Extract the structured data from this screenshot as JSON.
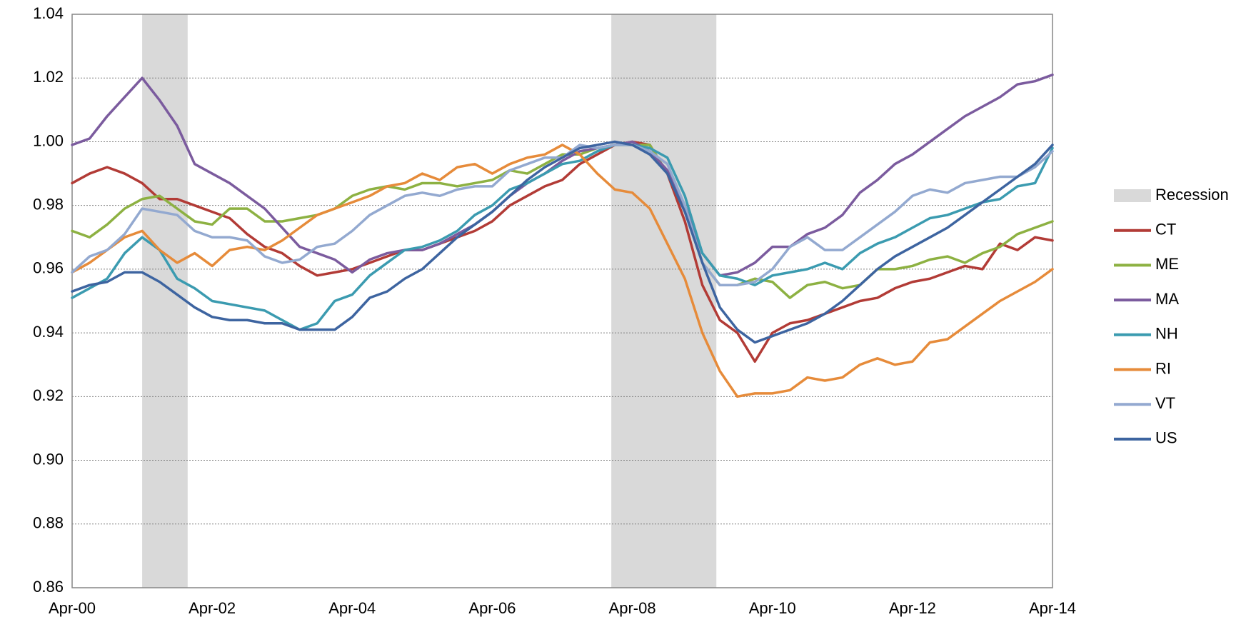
{
  "chart_data": {
    "type": "line",
    "categories": [
      "Apr-00",
      null,
      null,
      null,
      null,
      null,
      null,
      null,
      "Apr-02",
      null,
      null,
      null,
      null,
      null,
      null,
      null,
      "Apr-04",
      null,
      null,
      null,
      null,
      null,
      null,
      null,
      "Apr-06",
      null,
      null,
      null,
      null,
      null,
      null,
      null,
      "Apr-08",
      null,
      null,
      null,
      null,
      null,
      null,
      null,
      "Apr-10",
      null,
      null,
      null,
      null,
      null,
      null,
      null,
      "Apr-12",
      null,
      null,
      null,
      null,
      null,
      null,
      null,
      "Apr-14"
    ],
    "ylim": [
      0.86,
      1.04
    ],
    "yticks": [
      0.86,
      0.88,
      {
        "value": 0.9,
        "label": "0.90"
      },
      0.92,
      0.94,
      0.96,
      0.98,
      {
        "value": 1,
        "label": "1.00"
      },
      1.02,
      1.04
    ],
    "grid": true,
    "legend": "right",
    "recession": {
      "name": "Recession",
      "color": "#d9d9d9",
      "ranges": [
        [
          4,
          6.6
        ],
        [
          30.8,
          36.8
        ]
      ]
    },
    "series": [
      {
        "name": "CT",
        "color": "#b23b36",
        "values": [
          0.987,
          0.99,
          0.992,
          0.99,
          0.987,
          0.982,
          0.982,
          0.98,
          0.978,
          0.976,
          0.971,
          0.967,
          0.965,
          0.961,
          0.958,
          0.959,
          0.96,
          0.962,
          0.964,
          0.966,
          0.966,
          0.968,
          0.97,
          0.972,
          0.975,
          0.98,
          0.983,
          0.986,
          0.988,
          0.993,
          0.996,
          0.999,
          1.0,
          0.999,
          0.99,
          0.975,
          0.955,
          0.944,
          0.94,
          0.931,
          0.94,
          0.943,
          0.944,
          0.946,
          0.948,
          0.95,
          0.951,
          0.954,
          0.956,
          0.957,
          0.959,
          0.961,
          0.96,
          0.968,
          0.966,
          0.97,
          0.969
        ]
      },
      {
        "name": "ME",
        "color": "#8db142",
        "values": [
          0.972,
          0.97,
          0.974,
          0.979,
          0.982,
          0.983,
          0.979,
          0.975,
          0.974,
          0.979,
          0.979,
          0.975,
          0.975,
          0.976,
          0.977,
          0.979,
          0.983,
          0.985,
          0.986,
          0.985,
          0.987,
          0.987,
          0.986,
          0.987,
          0.988,
          0.991,
          0.99,
          0.993,
          0.996,
          0.996,
          0.998,
          0.999,
          0.999,
          0.999,
          0.99,
          0.98,
          0.962,
          0.955,
          0.955,
          0.957,
          0.956,
          0.951,
          0.955,
          0.956,
          0.954,
          0.955,
          0.96,
          0.96,
          0.961,
          0.963,
          0.964,
          0.962,
          0.965,
          0.967,
          0.971,
          0.973,
          0.975
        ]
      },
      {
        "name": "MA",
        "color": "#7b5b9e",
        "values": [
          0.999,
          1.001,
          1.008,
          1.014,
          1.02,
          1.013,
          1.005,
          0.993,
          0.99,
          0.987,
          0.983,
          0.979,
          0.973,
          0.967,
          0.965,
          0.963,
          0.959,
          0.963,
          0.965,
          0.966,
          0.966,
          0.968,
          0.971,
          0.974,
          0.978,
          0.983,
          0.987,
          0.99,
          0.994,
          0.997,
          0.998,
          0.999,
          1.0,
          0.997,
          0.991,
          0.98,
          0.965,
          0.958,
          0.959,
          0.962,
          0.967,
          0.967,
          0.971,
          0.973,
          0.977,
          0.984,
          0.988,
          0.993,
          0.996,
          1.0,
          1.004,
          1.008,
          1.011,
          1.014,
          1.018,
          1.019,
          1.021
        ]
      },
      {
        "name": "NH",
        "color": "#3b9bb0",
        "values": [
          0.951,
          0.954,
          0.957,
          0.965,
          0.97,
          0.966,
          0.957,
          0.954,
          0.95,
          0.949,
          0.948,
          0.947,
          0.944,
          0.941,
          0.943,
          0.95,
          0.952,
          0.958,
          0.962,
          0.966,
          0.967,
          0.969,
          0.972,
          0.977,
          0.98,
          0.985,
          0.987,
          0.99,
          0.993,
          0.994,
          0.997,
          0.999,
          0.999,
          0.998,
          0.995,
          0.983,
          0.965,
          0.958,
          0.957,
          0.955,
          0.958,
          0.959,
          0.96,
          0.962,
          0.96,
          0.965,
          0.968,
          0.97,
          0.973,
          0.976,
          0.977,
          0.979,
          0.981,
          0.982,
          0.986,
          0.987,
          0.998
        ]
      },
      {
        "name": "RI",
        "color": "#e68b3a",
        "values": [
          0.959,
          0.962,
          0.966,
          0.97,
          0.972,
          0.966,
          0.962,
          0.965,
          0.961,
          0.966,
          0.967,
          0.966,
          0.969,
          0.973,
          0.977,
          0.979,
          0.981,
          0.983,
          0.986,
          0.987,
          0.99,
          0.988,
          0.992,
          0.993,
          0.99,
          0.993,
          0.995,
          0.996,
          0.999,
          0.996,
          0.99,
          0.985,
          0.984,
          0.979,
          0.968,
          0.957,
          0.94,
          0.928,
          0.92,
          0.921,
          0.921,
          0.922,
          0.926,
          0.925,
          0.926,
          0.93,
          0.932,
          0.93,
          0.931,
          0.937,
          0.938,
          0.942,
          0.946,
          0.95,
          0.953,
          0.956,
          0.96
        ]
      },
      {
        "name": "VT",
        "color": "#93a9d0",
        "values": [
          0.959,
          0.964,
          0.966,
          0.971,
          0.979,
          0.978,
          0.977,
          0.972,
          0.97,
          0.97,
          0.969,
          0.964,
          0.962,
          0.963,
          0.967,
          0.968,
          0.972,
          0.977,
          0.98,
          0.983,
          0.984,
          0.983,
          0.985,
          0.986,
          0.986,
          0.991,
          0.993,
          0.995,
          0.995,
          0.999,
          0.998,
          0.999,
          0.999,
          0.997,
          0.993,
          0.98,
          0.962,
          0.955,
          0.955,
          0.956,
          0.96,
          0.967,
          0.97,
          0.966,
          0.966,
          0.97,
          0.974,
          0.978,
          0.983,
          0.985,
          0.984,
          0.987,
          0.988,
          0.989,
          0.989,
          0.992,
          0.997
        ]
      },
      {
        "name": "US",
        "color": "#3d64a0",
        "values": [
          0.953,
          0.955,
          0.956,
          0.959,
          0.959,
          0.956,
          0.952,
          0.948,
          0.945,
          0.944,
          0.944,
          0.943,
          0.943,
          0.941,
          0.941,
          0.941,
          0.945,
          0.951,
          0.953,
          0.957,
          0.96,
          0.965,
          0.97,
          0.974,
          0.978,
          0.983,
          0.988,
          0.992,
          0.995,
          0.998,
          0.999,
          1.0,
          0.999,
          0.996,
          0.99,
          0.978,
          0.962,
          0.948,
          0.941,
          0.937,
          0.939,
          0.941,
          0.943,
          0.946,
          0.95,
          0.955,
          0.96,
          0.964,
          0.967,
          0.97,
          0.973,
          0.977,
          0.981,
          0.985,
          0.989,
          0.993,
          0.999
        ]
      }
    ]
  }
}
